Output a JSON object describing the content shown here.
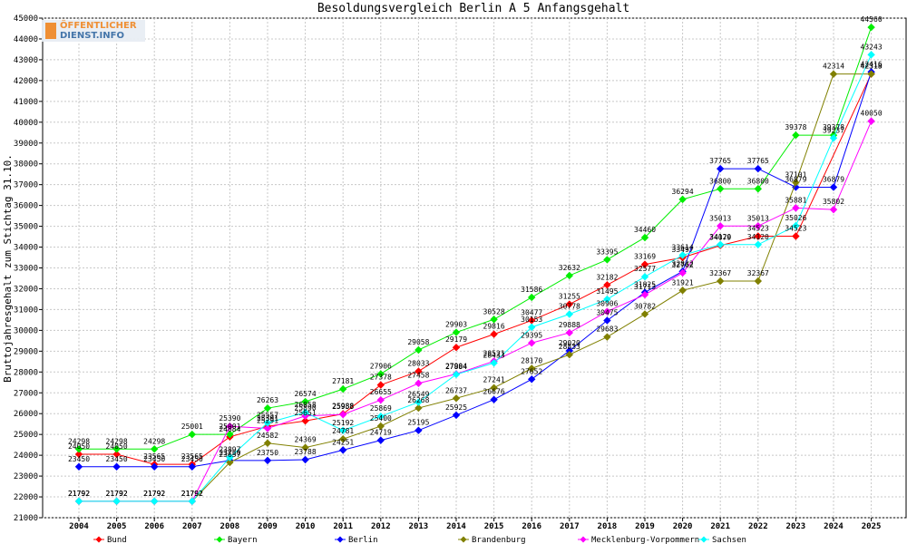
{
  "logo": {
    "line1": "ÖFFENTLICHER",
    "line2": "DIENST.INFO"
  },
  "chart_data": {
    "type": "line",
    "title": "Besoldungsvergleich Berlin A 5 Anfangsgehalt",
    "xlabel": "",
    "ylabel": "Bruttojahresgehalt zum Stichtag 31.10.",
    "ylim": [
      21000,
      45000
    ],
    "yticks": [
      21000,
      22000,
      23000,
      24000,
      25000,
      26000,
      27000,
      28000,
      29000,
      30000,
      31000,
      32000,
      33000,
      34000,
      35000,
      36000,
      37000,
      38000,
      39000,
      40000,
      41000,
      42000,
      43000,
      44000,
      45000
    ],
    "x": [
      "2004",
      "2005",
      "2006",
      "2007",
      "2008",
      "2009",
      "2010",
      "2011",
      "2012",
      "2013",
      "2014",
      "2015",
      "2016",
      "2017",
      "2018",
      "2019",
      "2020",
      "2021",
      "2022",
      "2023",
      "2024",
      "2025"
    ],
    "grid": true,
    "legend_position": "bottom",
    "series": [
      {
        "name": "Bund",
        "color": "#ff0000",
        "values": [
          24050,
          24050,
          23565,
          23565,
          24884,
          25391,
          25651,
          25988,
          27378,
          28033,
          29179,
          29816,
          30477,
          31255,
          32182,
          33169,
          33497,
          34079,
          34523,
          34523,
          null,
          42319
        ]
      },
      {
        "name": "Bayern",
        "color": "#00ee00",
        "values": [
          24298,
          24298,
          24298,
          25001,
          25001,
          26263,
          26574,
          27181,
          27906,
          29058,
          29903,
          30528,
          31586,
          32632,
          33395,
          34460,
          36294,
          36800,
          36800,
          39378,
          39378,
          44560
        ]
      },
      {
        "name": "Berlin",
        "color": "#0000ff",
        "values": [
          23450,
          23450,
          23450,
          23450,
          23750,
          23750,
          23788,
          24251,
          24719,
          25195,
          25925,
          26676,
          27652,
          29020,
          30475,
          31825,
          32832,
          37765,
          37765,
          36879,
          36879,
          42416
        ]
      },
      {
        "name": "Brandenburg",
        "color": "#808000",
        "values": [
          21792,
          21792,
          21792,
          21792,
          23657,
          24582,
          24369,
          24781,
          25400,
          26268,
          26737,
          27241,
          28170,
          28833,
          29683,
          30782,
          31921,
          32367,
          32367,
          37101,
          42314,
          42318
        ]
      },
      {
        "name": "Mecklenburg-Vorpommern",
        "color": "#ff00ff",
        "values": [
          21792,
          21792,
          21792,
          21792,
          25390,
          25291,
          25890,
          25958,
          26655,
          27458,
          27904,
          28521,
          29395,
          29888,
          30906,
          31713,
          32762,
          35013,
          35013,
          35881,
          35802,
          40050
        ]
      },
      {
        "name": "Sachsen",
        "color": "#00ffff",
        "values": [
          21792,
          21792,
          21792,
          21792,
          23897,
          25557,
          26058,
          25192,
          25869,
          26549,
          27884,
          28433,
          30153,
          30778,
          31495,
          32577,
          33614,
          34120,
          34120,
          35026,
          39237,
          43243
        ]
      }
    ],
    "data_labels": [
      [
        "24050",
        "24050",
        "23565",
        "23565",
        "24884",
        "25391",
        "25651",
        "25988",
        "27378",
        "28033",
        "29179",
        "29816",
        "30477",
        "31255",
        "32182",
        "33169",
        "33497",
        "34079",
        "34523",
        "34523",
        "",
        "42319"
      ],
      [
        "24298",
        "24298",
        "24298",
        "25001",
        "25001",
        "26263",
        "26574",
        "27181",
        "27906",
        "29058",
        "29903",
        "30528",
        "31586",
        "32632",
        "33395",
        "34460",
        "36294",
        "36800",
        "36800",
        "39378",
        "39378",
        "44560"
      ],
      [
        "23450",
        "23450",
        "23450",
        "23450",
        "23750",
        "23750",
        "23788",
        "24251",
        "24719",
        "25195",
        "25925",
        "26676",
        "27652",
        "29020",
        "30475",
        "31825",
        "32832",
        "37765",
        "37765",
        "36879",
        "36879",
        "42416"
      ],
      [
        "21792",
        "21792",
        "21792",
        "21792",
        "23657",
        "24582",
        "24369",
        "24781",
        "25400",
        "26268",
        "26737",
        "27241",
        "28170",
        "28833",
        "29683",
        "30782",
        "31921",
        "32367",
        "32367",
        "37101",
        "42314",
        "42318"
      ],
      [
        "21792",
        "21792",
        "21792",
        "21792",
        "25390",
        "25291",
        "25890",
        "25958",
        "26655",
        "27458",
        "27904",
        "28521",
        "29395",
        "29888",
        "30906",
        "31713",
        "32762",
        "35013",
        "35013",
        "35881",
        "35802",
        "40050"
      ],
      [
        "21792",
        "21792",
        "21792",
        "21792",
        "23897",
        "25557",
        "26058",
        "25192",
        "25869",
        "26549",
        "27884",
        "28433",
        "30153",
        "30778",
        "31495",
        "32577",
        "33614",
        "34120",
        "34120",
        "35026",
        "39237",
        "43243"
      ]
    ]
  }
}
